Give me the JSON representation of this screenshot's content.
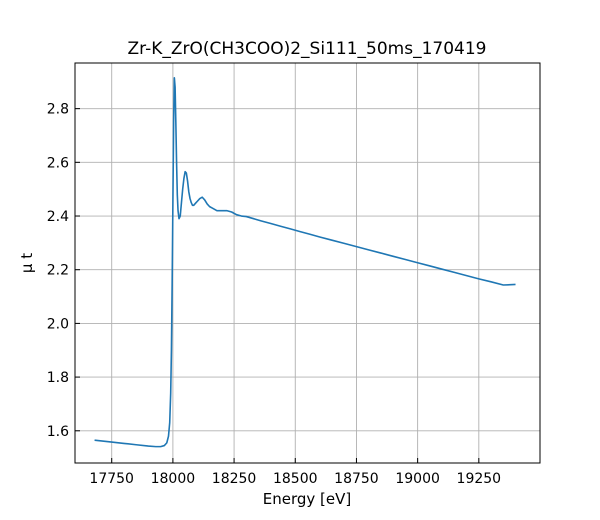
{
  "chart_data": {
    "type": "line",
    "title": "Zr-K_ZrO(CH3COO)2_Si111_50ms_170419",
    "xlabel": "Energy [eV]",
    "ylabel": "μ t",
    "xlim": [
      17600,
      19500
    ],
    "ylim": [
      1.48,
      2.97
    ],
    "xticks": [
      17750,
      18000,
      18250,
      18500,
      18750,
      19000,
      19250
    ],
    "yticks": [
      1.6,
      1.8,
      2.0,
      2.2,
      2.4,
      2.6,
      2.8
    ],
    "xtick_labels": [
      "17750",
      "18000",
      "18250",
      "18500",
      "18750",
      "19000",
      "19250"
    ],
    "ytick_labels": [
      "1.6",
      "1.8",
      "2.0",
      "2.2",
      "2.4",
      "2.6",
      "2.8"
    ],
    "grid": true,
    "color": "#1f77b4",
    "series": [
      {
        "x": [
          17680,
          17750,
          17800,
          17850,
          17900,
          17930,
          17950,
          17965,
          17975,
          17982,
          17987,
          17991,
          17994,
          17997,
          18000,
          18003,
          18006,
          18009,
          18012,
          18015,
          18018,
          18021,
          18025,
          18030,
          18035,
          18040,
          18045,
          18050,
          18055,
          18060,
          18065,
          18070,
          18075,
          18080,
          18085,
          18090,
          18095,
          18100,
          18110,
          18120,
          18130,
          18140,
          18150,
          18160,
          18170,
          18180,
          18200,
          18220,
          18240,
          18260,
          18280,
          18300,
          18330,
          18360,
          18400,
          18440,
          18480,
          18520,
          18560,
          18600,
          18650,
          18700,
          18750,
          18800,
          18850,
          18900,
          18950,
          19000,
          19050,
          19100,
          19150,
          19200,
          19250,
          19300,
          19350,
          19400
        ],
        "y": [
          1.565,
          1.558,
          1.553,
          1.548,
          1.543,
          1.541,
          1.541,
          1.545,
          1.555,
          1.58,
          1.63,
          1.74,
          1.9,
          2.15,
          2.45,
          2.75,
          2.915,
          2.88,
          2.75,
          2.6,
          2.48,
          2.42,
          2.39,
          2.4,
          2.45,
          2.5,
          2.54,
          2.565,
          2.56,
          2.53,
          2.49,
          2.465,
          2.45,
          2.44,
          2.44,
          2.445,
          2.45,
          2.455,
          2.465,
          2.47,
          2.46,
          2.445,
          2.435,
          2.43,
          2.425,
          2.42,
          2.42,
          2.42,
          2.415,
          2.405,
          2.4,
          2.398,
          2.39,
          2.382,
          2.372,
          2.362,
          2.352,
          2.342,
          2.332,
          2.322,
          2.31,
          2.298,
          2.286,
          2.274,
          2.262,
          2.25,
          2.238,
          2.226,
          2.214,
          2.202,
          2.19,
          2.178,
          2.166,
          2.155,
          2.143,
          2.145
        ]
      }
    ]
  }
}
